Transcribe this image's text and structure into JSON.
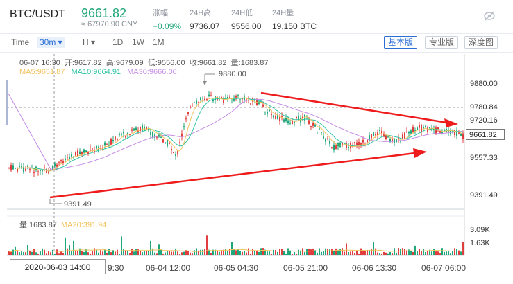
{
  "header": {
    "pair": "BTC/USDT",
    "price": "9661.82",
    "cny": "≈ 67970.90 CNY",
    "stats": [
      {
        "label": "涨幅",
        "value": "+0.09%",
        "up": true
      },
      {
        "label": "24H高",
        "value": "9736.07"
      },
      {
        "label": "24H低",
        "value": "9556.00"
      },
      {
        "label": "24H量",
        "value": "19,150 BTC"
      }
    ]
  },
  "toolbar": {
    "time_label": "Time",
    "interval": "30m ▾",
    "chart_type": "H ▾",
    "ranges": [
      "1D",
      "1W",
      "1M"
    ],
    "versions": [
      "基本版",
      "专业版",
      "深度图"
    ]
  },
  "ohlc": {
    "datetime": "06-07 16:30",
    "open": "开:9617.82",
    "high": "高:9679.09",
    "low": "低:9556.00",
    "close": "收:9661.82",
    "volume": "量:1683.87"
  },
  "ma": {
    "ma5": "MA5:9651.87",
    "ma10": "MA10:9664.91",
    "ma30": "MA30:9666.06"
  },
  "price_axis": [
    "9880.00",
    "9780.84",
    "9720.16",
    "9557.33",
    "9391.49"
  ],
  "last_price": "9661.82",
  "annotations": {
    "high": "9880.00",
    "low": "9391.49"
  },
  "volume_info": {
    "volume": "量:1683.87",
    "ma20": "MA20:391.94"
  },
  "volume_axis": [
    "3.09K",
    "1.63K"
  ],
  "time_axis": [
    "9:30",
    "06-04 12:00",
    "06-05 04:30",
    "06-05 21:00",
    "06-06 13:30",
    "06-07 06:00"
  ],
  "crosshair_time": "2020-06-03 14:00",
  "colors": {
    "up": "#1fa67a",
    "down": "#e03e3e",
    "ma5": "#f3c25b",
    "ma10": "#2cc3a4",
    "ma30": "#c58ce6",
    "trend": "#ee1c1c"
  }
}
